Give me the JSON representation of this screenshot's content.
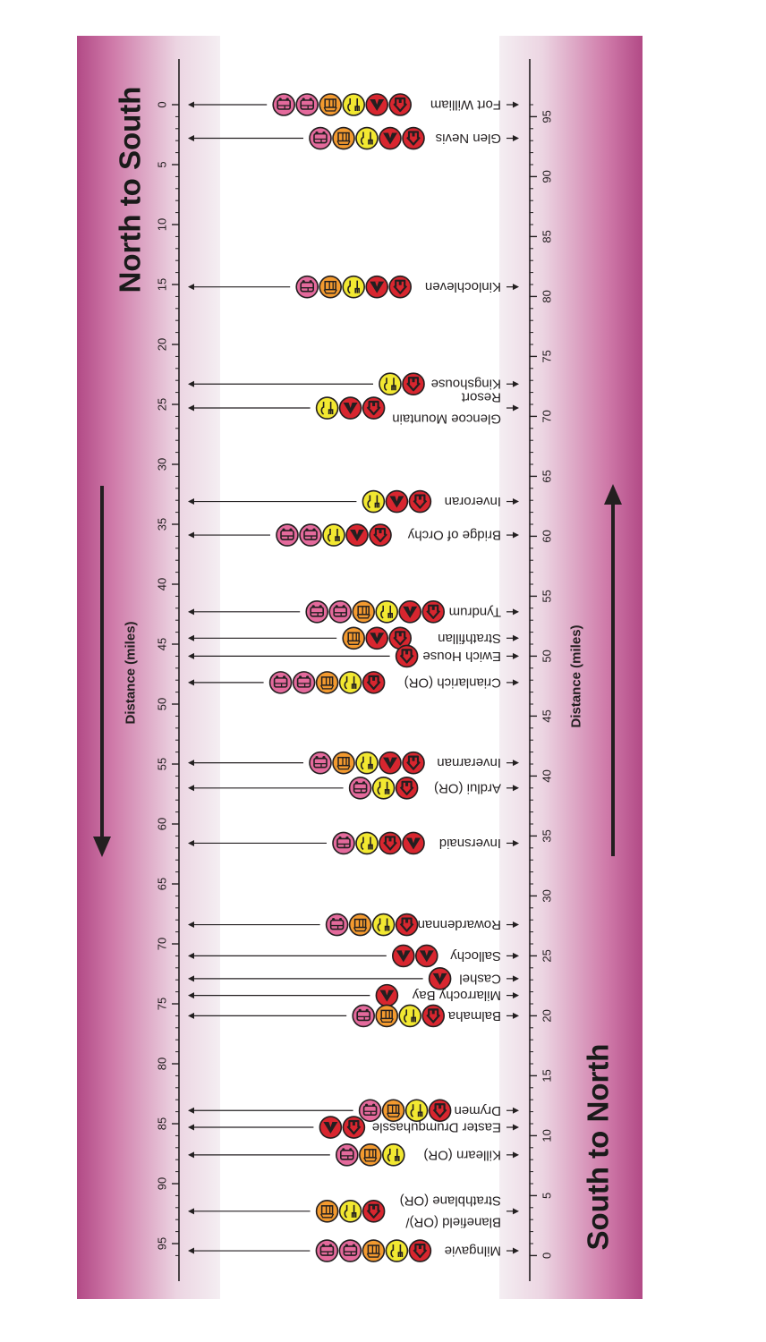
{
  "title_nts": "North to South",
  "title_stn": "South to North",
  "axis_label": "Distance (miles)",
  "colors": {
    "accommodation": "#d8262f",
    "camping": "#d8262f",
    "food": "#f2e831",
    "shop": "#f39a2f",
    "transport": "#e46a9c",
    "outline": "#231f20"
  },
  "icon_names": {
    "accommodation": "house-icon",
    "camping": "tent-icon",
    "food": "cutlery-icon",
    "shop": "shop-icon",
    "transport": "bus-icon"
  },
  "chart_data": {
    "type": "timeline",
    "left_axis": {
      "ticks": [
        "0",
        "5",
        "10",
        "15",
        "20",
        "25",
        "30",
        "35",
        "40",
        "45",
        "50",
        "55",
        "60",
        "65",
        "70",
        "75",
        "80",
        "85",
        "90",
        "95"
      ],
      "range": [
        0,
        96
      ]
    },
    "right_axis": {
      "ticks": [
        "95",
        "90",
        "85",
        "80",
        "75",
        "70",
        "65",
        "60",
        "55",
        "50",
        "45",
        "40",
        "35",
        "30",
        "25",
        "20",
        "15",
        "10",
        "5",
        "0"
      ],
      "range": [
        0,
        96
      ]
    },
    "stops": [
      {
        "lines": [
          "Fort William"
        ],
        "mile": 0,
        "icons": [
          "accommodation",
          "camping",
          "food",
          "shop",
          "transport",
          "transport"
        ]
      },
      {
        "lines": [
          "Glen Nevis"
        ],
        "mile": 2.8,
        "icons": [
          "accommodation",
          "camping",
          "food",
          "shop",
          "transport"
        ]
      },
      {
        "lines": [
          "Kinlochleven"
        ],
        "mile": 15.2,
        "icons": [
          "accommodation",
          "camping",
          "food",
          "shop",
          "transport"
        ]
      },
      {
        "lines": [
          "Kingshouse"
        ],
        "mile": 23.3,
        "icons": [
          "accommodation",
          "food"
        ]
      },
      {
        "lines": [
          "Glencoe Mountain",
          "Resort"
        ],
        "mile": 25.3,
        "icons": [
          "accommodation",
          "camping",
          "food"
        ]
      },
      {
        "lines": [
          "Inveroran"
        ],
        "mile": 33.1,
        "icons": [
          "accommodation",
          "camping",
          "food"
        ]
      },
      {
        "lines": [
          "Bridge of Orchy"
        ],
        "mile": 35.9,
        "icons": [
          "accommodation",
          "camping",
          "food",
          "transport",
          "transport"
        ]
      },
      {
        "lines": [
          "Tyndrum"
        ],
        "mile": 42.3,
        "icons": [
          "accommodation",
          "camping",
          "food",
          "shop",
          "transport",
          "transport"
        ]
      },
      {
        "lines": [
          "Strathfillan"
        ],
        "mile": 44.5,
        "icons": [
          "accommodation",
          "camping",
          "shop"
        ]
      },
      {
        "lines": [
          "Ewich House"
        ],
        "mile": 46.0,
        "icons": [
          "accommodation"
        ]
      },
      {
        "lines": [
          "Crianlarich (OR)"
        ],
        "mile": 48.2,
        "icons": [
          "accommodation",
          "food",
          "shop",
          "transport",
          "transport"
        ]
      },
      {
        "lines": [
          "Inverarnan"
        ],
        "mile": 54.9,
        "icons": [
          "accommodation",
          "camping",
          "food",
          "shop",
          "transport"
        ]
      },
      {
        "lines": [
          "Ardlui (OR)"
        ],
        "mile": 57.0,
        "icons": [
          "accommodation",
          "food",
          "transport"
        ]
      },
      {
        "lines": [
          "Inversnaid"
        ],
        "mile": 61.6,
        "icons": [
          "camping",
          "accommodation",
          "food",
          "transport"
        ]
      },
      {
        "lines": [
          "Rowardennan"
        ],
        "mile": 68.4,
        "icons": [
          "accommodation",
          "food",
          "shop",
          "transport"
        ]
      },
      {
        "lines": [
          "Sallochy"
        ],
        "mile": 71.0,
        "icons": [
          "camping",
          "camping"
        ]
      },
      {
        "lines": [
          "Cashel"
        ],
        "mile": 72.9,
        "icons": [
          "camping"
        ]
      },
      {
        "lines": [
          "Milarrochy Bay"
        ],
        "mile": 74.3,
        "icons": [
          "camping"
        ]
      },
      {
        "lines": [
          "Balmaha"
        ],
        "mile": 76.0,
        "icons": [
          "accommodation",
          "food",
          "shop",
          "transport"
        ]
      },
      {
        "lines": [
          "Drymen"
        ],
        "mile": 83.9,
        "icons": [
          "accommodation",
          "food",
          "shop",
          "transport"
        ]
      },
      {
        "lines": [
          "Easter Drumquhassle"
        ],
        "mile": 85.3,
        "icons": [
          "accommodation",
          "camping"
        ]
      },
      {
        "lines": [
          "Killearn (OR)"
        ],
        "mile": 87.6,
        "icons": [
          "food",
          "shop",
          "transport"
        ]
      },
      {
        "lines": [
          "Blanefield (OR)/",
          "Strathblane (OR)"
        ],
        "mile": 92.3,
        "icons": [
          "accommodation",
          "food",
          "shop"
        ]
      },
      {
        "lines": [
          "Milngavie"
        ],
        "mile": 95.6,
        "icons": [
          "accommodation",
          "food",
          "shop",
          "transport",
          "transport"
        ]
      }
    ]
  }
}
